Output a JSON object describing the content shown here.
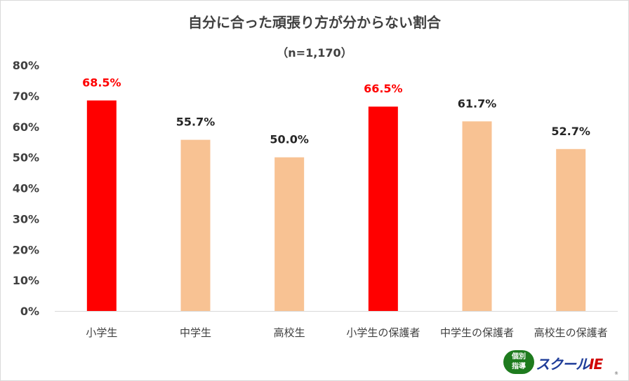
{
  "chart_data": {
    "type": "bar",
    "title": "自分に合った頑張り方が分からない割合",
    "subtitle": "（n=1,170）",
    "categories": [
      "小学生",
      "中学生",
      "高校生",
      "小学生の保護者",
      "中学生の保護者",
      "高校生の保護者"
    ],
    "values": [
      68.5,
      55.7,
      50.0,
      66.5,
      61.7,
      52.7
    ],
    "data_labels": [
      "68.5%",
      "55.7%",
      "50.0%",
      "66.5%",
      "61.7%",
      "52.7%"
    ],
    "highlight": [
      true,
      false,
      false,
      true,
      false,
      false
    ],
    "colors": {
      "highlight": "#ff0000",
      "normal": "#f8c293",
      "highlight_label": "#ff0000",
      "normal_label": "#262626"
    },
    "ylim": [
      0,
      80
    ],
    "yticks": [
      0,
      10,
      20,
      30,
      40,
      50,
      60,
      70,
      80
    ],
    "ytick_labels": [
      "0%",
      "10%",
      "20%",
      "30%",
      "40%",
      "50%",
      "60%",
      "70%",
      "80%"
    ],
    "xlabel": "",
    "ylabel": "",
    "grid": false,
    "legend": "none"
  },
  "logo": {
    "kanji_top": "個別",
    "kanji_bottom": "指導",
    "text_main": "スクール",
    "text_ie": "IE",
    "mark": "®"
  }
}
